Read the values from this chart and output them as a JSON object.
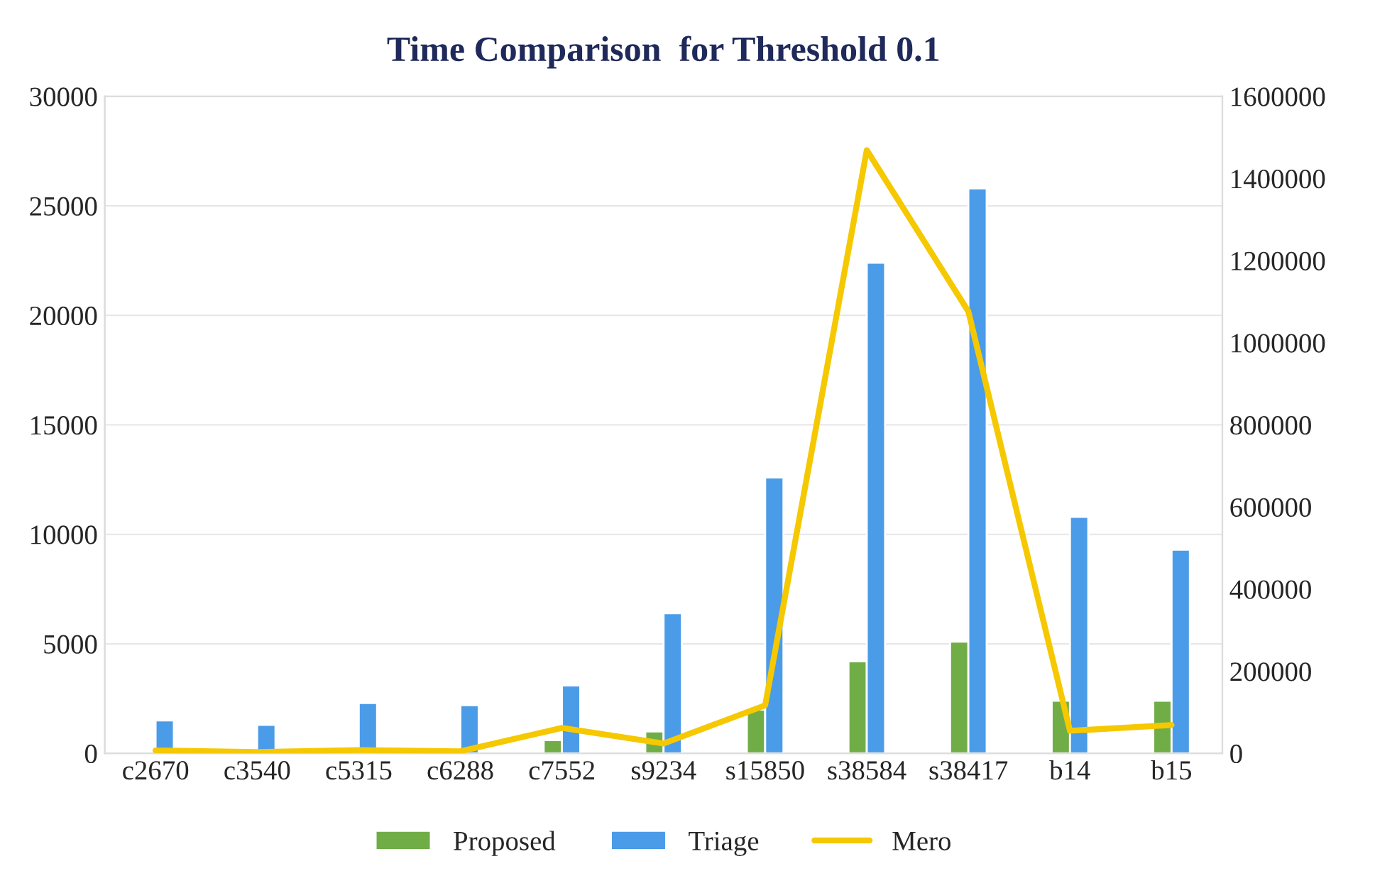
{
  "chart_data": {
    "type": "bar",
    "title": "Time Comparison  for Threshold 0.1",
    "categories": [
      "c2670",
      "c3540",
      "c5315",
      "c6288",
      "c7552",
      "s9234",
      "s15850",
      "s38584",
      "s38417",
      "b14",
      "b15"
    ],
    "series": [
      {
        "name": "Proposed",
        "color": "#70ad47",
        "values": [
          null,
          null,
          null,
          null,
          600,
          1000,
          2000,
          4200,
          5100,
          2400,
          2400
        ]
      },
      {
        "name": "Triage",
        "color": "#4a9be8",
        "values": [
          1500,
          1300,
          2300,
          2200,
          3100,
          6400,
          12600,
          22400,
          25800,
          10800,
          9300
        ]
      },
      {
        "name": "Mero",
        "type": "line",
        "axis": "y2",
        "color": "#f5c800",
        "values": [
          7000,
          3000,
          8000,
          5000,
          62000,
          24000,
          117000,
          1469000,
          1076000,
          55000,
          69000
        ]
      }
    ],
    "ylim": [
      0,
      30000
    ],
    "yticks": [
      0,
      5000,
      10000,
      15000,
      20000,
      25000,
      30000
    ],
    "y2lim": [
      0,
      1600000
    ],
    "y2ticks": [
      0,
      200000,
      400000,
      600000,
      800000,
      1000000,
      1200000,
      1400000,
      1600000
    ],
    "grid": "y",
    "legend": "bottom"
  }
}
